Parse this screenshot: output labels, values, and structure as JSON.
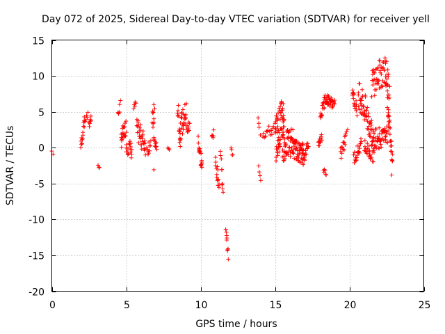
{
  "chart_data": {
    "type": "scatter",
    "title": "Day 072 of 2025, Sidereal Day-to-day VTEC variation (SDTVAR) for receiver yell",
    "xlabel": "GPS time / hours",
    "ylabel": "SDTVAR / TECUs",
    "xlim": [
      0,
      25
    ],
    "ylim": [
      -20,
      15
    ],
    "xticks": [
      0,
      5,
      10,
      15,
      20,
      25
    ],
    "yticks": [
      -20,
      -15,
      -10,
      -5,
      0,
      5,
      10,
      15
    ],
    "xtick_labels": [
      "0",
      "5",
      "10",
      "15",
      "20",
      "25"
    ],
    "ytick_labels": [
      "-20",
      "-15",
      "-10",
      "-5",
      "0",
      "5",
      "10",
      "15"
    ],
    "grid": true,
    "marker": "+",
    "color": "#ff0000",
    "clusters": [
      {
        "x0": 0.0,
        "x1": 0.1,
        "y0": -0.5,
        "y1": -0.8,
        "amp": 0.2,
        "n": 2
      },
      {
        "x0": 1.95,
        "x1": 2.2,
        "y0": 0.0,
        "y1": 4.0,
        "amp": 0.8,
        "n": 14
      },
      {
        "x0": 2.2,
        "x1": 2.45,
        "y0": 3.8,
        "y1": 4.5,
        "amp": 0.5,
        "n": 6
      },
      {
        "x0": 2.5,
        "x1": 2.65,
        "y0": 3.0,
        "y1": 4.5,
        "amp": 0.6,
        "n": 7
      },
      {
        "x0": 3.1,
        "x1": 3.2,
        "y0": -2.5,
        "y1": -2.8,
        "amp": 0.2,
        "n": 3
      },
      {
        "x0": 4.45,
        "x1": 4.6,
        "y0": 4.5,
        "y1": 6.0,
        "amp": 0.6,
        "n": 6
      },
      {
        "x0": 4.65,
        "x1": 5.0,
        "y0": 1.0,
        "y1": 3.0,
        "amp": 1.2,
        "n": 22
      },
      {
        "x0": 5.0,
        "x1": 5.4,
        "y0": 0.5,
        "y1": -0.5,
        "amp": 1.2,
        "n": 18
      },
      {
        "x0": 5.5,
        "x1": 5.65,
        "y0": 5.5,
        "y1": 6.2,
        "amp": 0.4,
        "n": 5
      },
      {
        "x0": 5.7,
        "x1": 6.3,
        "y0": 2.5,
        "y1": 0.5,
        "amp": 1.6,
        "n": 32
      },
      {
        "x0": 6.4,
        "x1": 6.65,
        "y0": -0.5,
        "y1": 1.0,
        "amp": 1.0,
        "n": 10
      },
      {
        "x0": 6.75,
        "x1": 6.9,
        "y0": 3.0,
        "y1": 5.0,
        "amp": 1.8,
        "n": 10
      },
      {
        "x0": 6.85,
        "x1": 7.05,
        "y0": 1.0,
        "y1": 0.0,
        "amp": 1.0,
        "n": 10
      },
      {
        "x0": 6.85,
        "x1": 6.9,
        "y0": -3.0,
        "y1": -3.0,
        "amp": 0.1,
        "n": 1
      },
      {
        "x0": 7.8,
        "x1": 7.9,
        "y0": -0.3,
        "y1": -0.5,
        "amp": 0.3,
        "n": 3
      },
      {
        "x0": 8.45,
        "x1": 8.65,
        "y0": 6.0,
        "y1": 1.0,
        "amp": 1.5,
        "n": 14
      },
      {
        "x0": 8.6,
        "x1": 9.05,
        "y0": 2.5,
        "y1": 5.0,
        "amp": 1.8,
        "n": 26
      },
      {
        "x0": 9.05,
        "x1": 9.25,
        "y0": 2.5,
        "y1": 3.0,
        "amp": 1.0,
        "n": 10
      },
      {
        "x0": 9.85,
        "x1": 10.1,
        "y0": 1.0,
        "y1": -3.0,
        "amp": 1.3,
        "n": 18
      },
      {
        "x0": 10.75,
        "x1": 10.9,
        "y0": 1.5,
        "y1": 2.0,
        "amp": 0.5,
        "n": 6
      },
      {
        "x0": 11.0,
        "x1": 11.25,
        "y0": -2.0,
        "y1": -5.0,
        "amp": 1.0,
        "n": 14
      },
      {
        "x0": 11.35,
        "x1": 11.5,
        "y0": -0.5,
        "y1": -7.0,
        "amp": 1.0,
        "n": 10
      },
      {
        "x0": 11.7,
        "x1": 11.85,
        "y0": -11.0,
        "y1": -15.2,
        "amp": 0.6,
        "n": 9
      },
      {
        "x0": 12.05,
        "x1": 12.15,
        "y0": -0.2,
        "y1": -1.2,
        "amp": 0.4,
        "n": 4
      },
      {
        "x0": 13.85,
        "x1": 14.0,
        "y0": 4.0,
        "y1": 2.0,
        "amp": 0.3,
        "n": 4
      },
      {
        "x0": 13.9,
        "x1": 14.05,
        "y0": -2.5,
        "y1": -4.3,
        "amp": 0.4,
        "n": 4
      },
      {
        "x0": 14.2,
        "x1": 14.9,
        "y0": 2.0,
        "y1": 2.5,
        "amp": 0.8,
        "n": 16
      },
      {
        "x0": 15.0,
        "x1": 15.6,
        "y0": 1.0,
        "y1": 4.5,
        "amp": 3.2,
        "n": 65
      },
      {
        "x0": 15.5,
        "x1": 16.2,
        "y0": 0.0,
        "y1": 1.0,
        "amp": 2.0,
        "n": 50
      },
      {
        "x0": 16.2,
        "x1": 16.9,
        "y0": 0.0,
        "y1": -1.0,
        "amp": 1.4,
        "n": 50
      },
      {
        "x0": 16.85,
        "x1": 17.05,
        "y0": 0.0,
        "y1": -1.5,
        "amp": 1.0,
        "n": 10
      },
      {
        "x0": 17.05,
        "x1": 17.25,
        "y0": -0.5,
        "y1": 0.5,
        "amp": 0.7,
        "n": 8
      },
      {
        "x0": 17.9,
        "x1": 18.15,
        "y0": 0.5,
        "y1": 1.5,
        "amp": 0.6,
        "n": 12
      },
      {
        "x0": 18.25,
        "x1": 18.45,
        "y0": -3.0,
        "y1": -3.6,
        "amp": 0.3,
        "n": 6
      },
      {
        "x0": 18.05,
        "x1": 18.3,
        "y0": 4.5,
        "y1": 6.0,
        "amp": 0.8,
        "n": 14
      },
      {
        "x0": 18.3,
        "x1": 19.0,
        "y0": 7.0,
        "y1": 6.0,
        "amp": 0.7,
        "n": 40
      },
      {
        "x0": 19.4,
        "x1": 19.75,
        "y0": -1.0,
        "y1": 1.0,
        "amp": 1.0,
        "n": 14
      },
      {
        "x0": 19.75,
        "x1": 19.9,
        "y0": 2.0,
        "y1": 2.8,
        "amp": 0.3,
        "n": 3
      },
      {
        "x0": 20.2,
        "x1": 20.5,
        "y0": 8.0,
        "y1": 5.0,
        "amp": 0.9,
        "n": 18
      },
      {
        "x0": 20.3,
        "x1": 20.8,
        "y0": -1.5,
        "y1": 0.5,
        "amp": 0.9,
        "n": 22
      },
      {
        "x0": 20.6,
        "x1": 21.4,
        "y0": 8.0,
        "y1": 3.0,
        "amp": 2.2,
        "n": 45
      },
      {
        "x0": 21.0,
        "x1": 21.7,
        "y0": 0.0,
        "y1": -1.0,
        "amp": 1.2,
        "n": 30
      },
      {
        "x0": 21.4,
        "x1": 22.0,
        "y0": 3.0,
        "y1": 1.0,
        "amp": 1.8,
        "n": 30
      },
      {
        "x0": 21.5,
        "x1": 22.4,
        "y0": 9.0,
        "y1": 11.0,
        "amp": 2.2,
        "n": 45
      },
      {
        "x0": 22.0,
        "x1": 22.6,
        "y0": 1.0,
        "y1": 2.0,
        "amp": 1.2,
        "n": 30
      },
      {
        "x0": 22.4,
        "x1": 22.7,
        "y0": 11.0,
        "y1": 8.0,
        "amp": 2.0,
        "n": 20
      },
      {
        "x0": 22.55,
        "x1": 22.9,
        "y0": 6.0,
        "y1": -1.5,
        "amp": 1.2,
        "n": 25
      },
      {
        "x0": 22.8,
        "x1": 22.9,
        "y0": -3.7,
        "y1": -3.9,
        "amp": 0.1,
        "n": 1
      }
    ]
  }
}
